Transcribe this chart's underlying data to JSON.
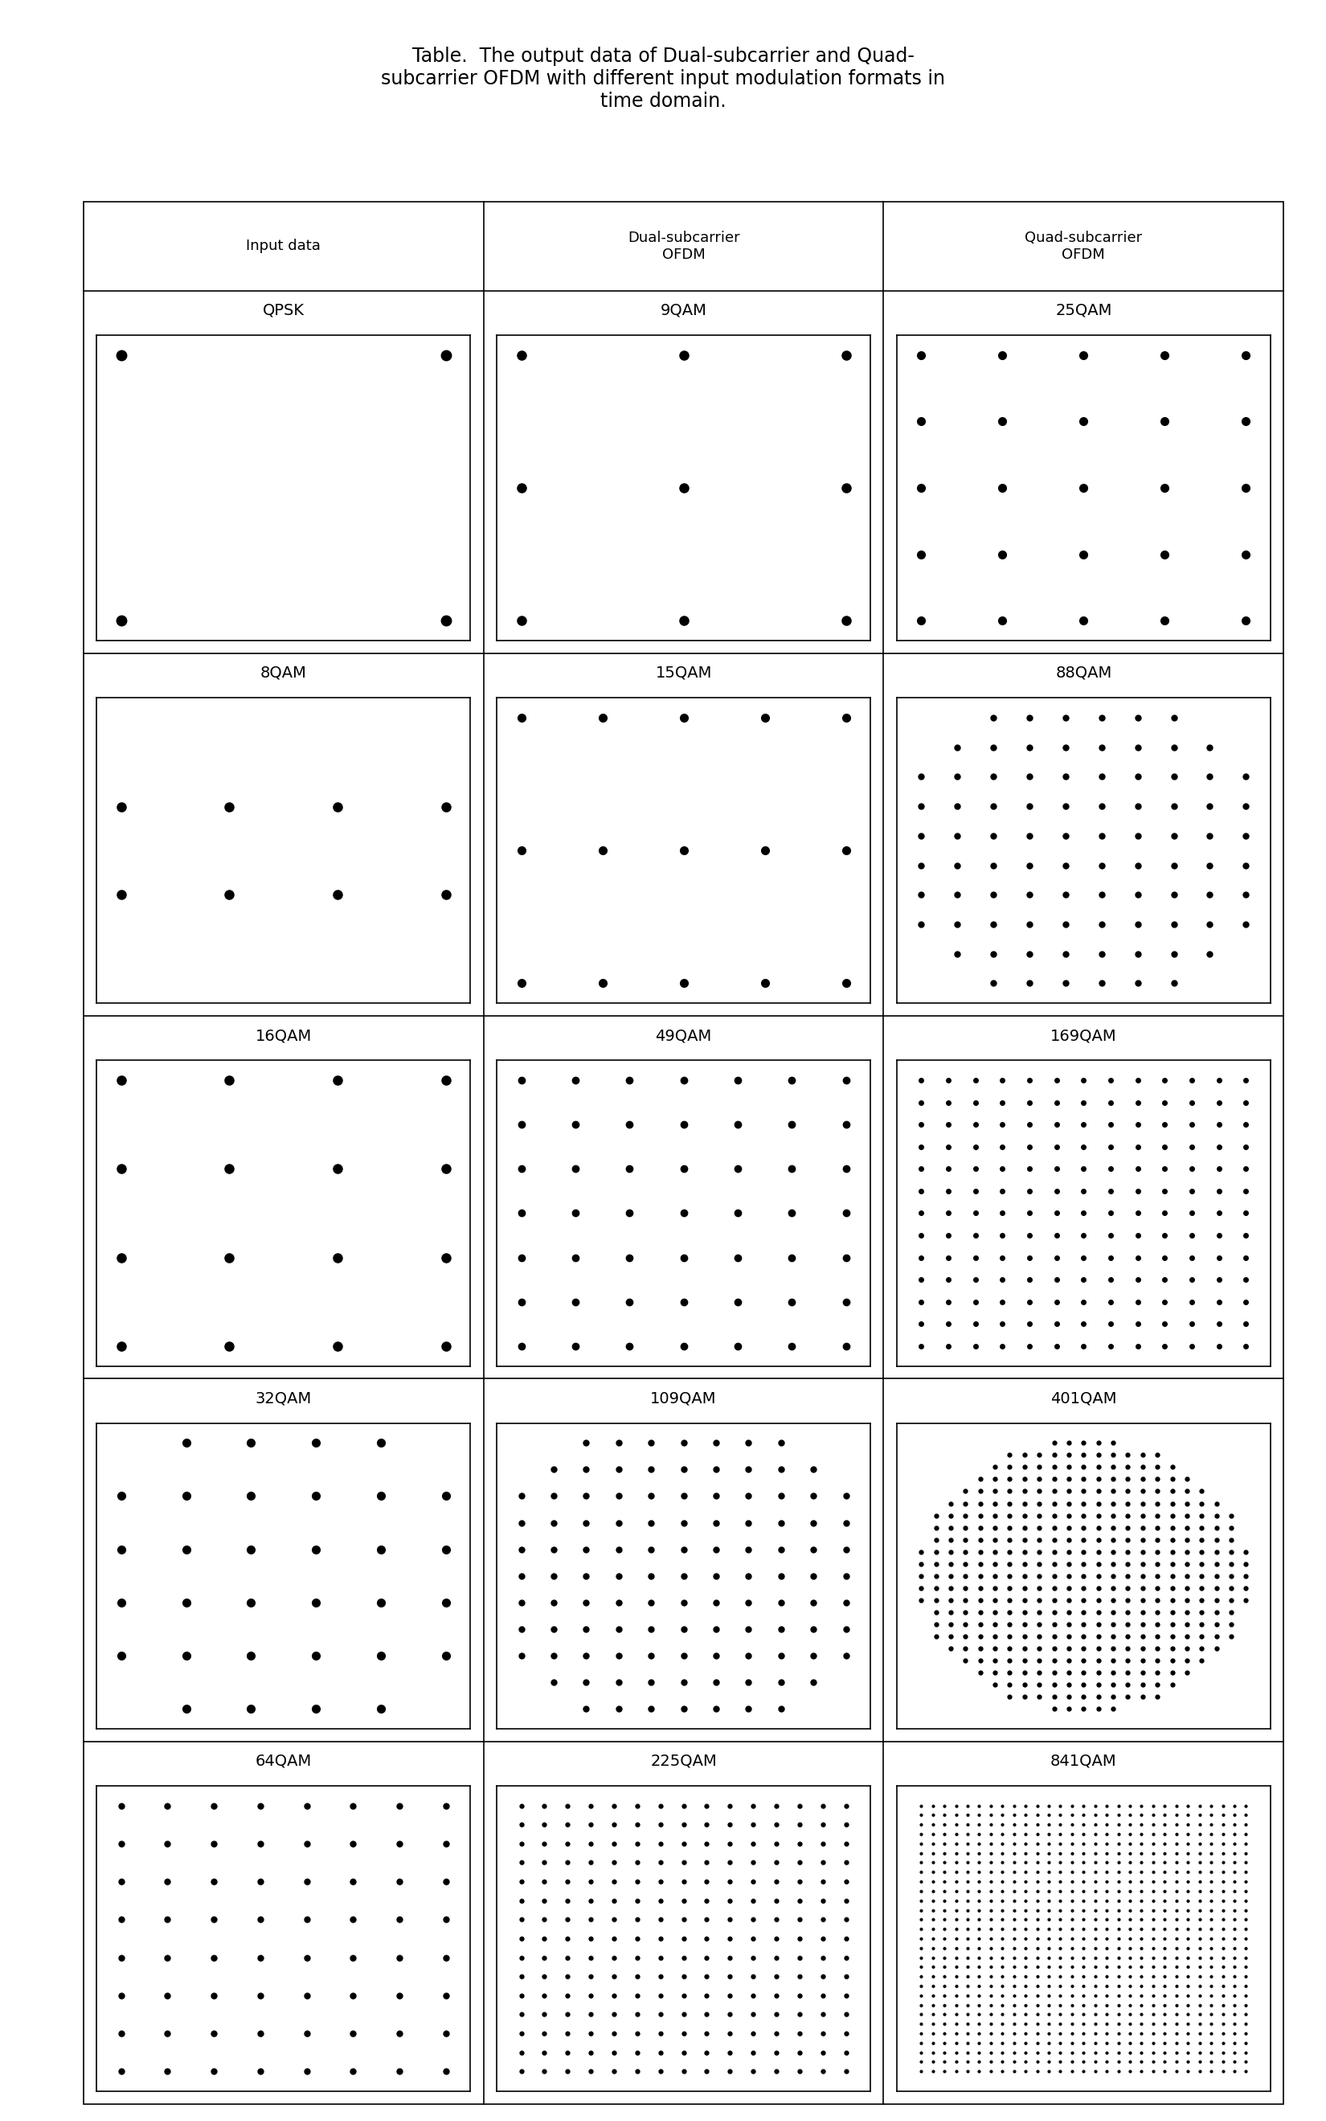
{
  "title": "Table.  The output data of Dual-subcarrier and Quad-\nsubcarrier OFDM with different input modulation formats in\ntime domain.",
  "col_headers": [
    "Input data",
    "Dual-subcarrier\nOFDM",
    "Quad-subcarrier\nOFDM"
  ],
  "row_labels": [
    [
      "QPSK",
      "9QAM",
      "25QAM"
    ],
    [
      "8QAM",
      "15QAM",
      "88QAM"
    ],
    [
      "16QAM",
      "49QAM",
      "169QAM"
    ],
    [
      "32QAM",
      "109QAM",
      "401QAM"
    ],
    [
      "64QAM",
      "225QAM",
      "841QAM"
    ]
  ],
  "dot_color": "#000000",
  "bg_color": "#ffffff",
  "border_color": "#000000",
  "title_fontsize": 17,
  "header_fontsize": 13,
  "label_fontsize": 14
}
